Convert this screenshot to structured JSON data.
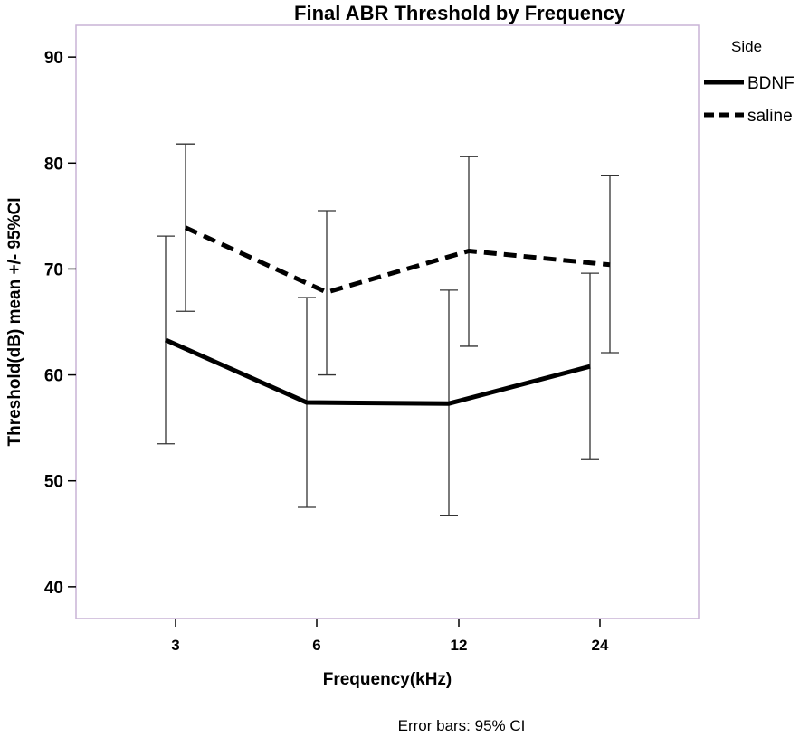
{
  "chart_data": {
    "type": "line",
    "title": "Final ABR Threshold by Frequency",
    "xlabel": "Frequency(kHz)",
    "ylabel": "Threshold(dB) mean +/- 95%CI",
    "categories": [
      "3",
      "6",
      "12",
      "24"
    ],
    "ylim": [
      37,
      93
    ],
    "yticks": [
      40,
      50,
      60,
      70,
      80,
      90
    ],
    "grid": false,
    "legend_title": "Side",
    "legend_position": "right",
    "footnote": "Error bars: 95% CI",
    "series": [
      {
        "name": "BDNF",
        "style": "solid",
        "values": [
          63.3,
          57.4,
          57.3,
          60.8
        ],
        "ci_low": [
          53.5,
          47.5,
          46.7,
          52.0
        ],
        "ci_high": [
          73.1,
          67.3,
          68.0,
          69.6
        ]
      },
      {
        "name": "saline",
        "style": "dashed",
        "values": [
          73.9,
          67.8,
          71.7,
          70.4
        ],
        "ci_low": [
          66.0,
          60.0,
          62.7,
          62.1
        ],
        "ci_high": [
          81.8,
          75.5,
          80.6,
          78.8
        ]
      }
    ],
    "colors": {
      "frame": "#c9b3d6",
      "line": "#000000",
      "errorbar": "#333333"
    }
  }
}
